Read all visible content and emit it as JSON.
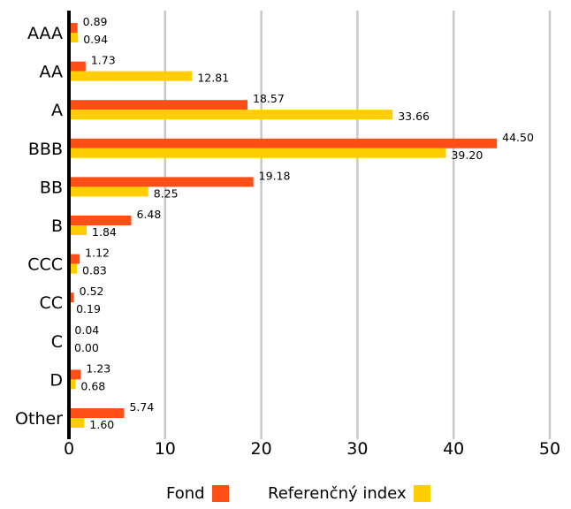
{
  "chart_data": {
    "type": "bar",
    "orientation": "horizontal",
    "categories": [
      "AAA",
      "AA",
      "A",
      "BBB",
      "BB",
      "B",
      "CCC",
      "CC",
      "C",
      "D",
      "Other"
    ],
    "series": [
      {
        "name": "Fond",
        "color": "#FF4F17",
        "values": [
          0.89,
          1.73,
          18.57,
          44.5,
          19.18,
          6.48,
          1.12,
          0.52,
          0.04,
          1.23,
          5.74
        ],
        "labels": [
          "0.89",
          "1.73",
          "18.57",
          "44.50",
          "19.18",
          "6.48",
          "1.12",
          "0.52",
          "0.04",
          "1.23",
          "5.74"
        ]
      },
      {
        "name": "Referenčný index",
        "color": "#FFCE00",
        "values": [
          0.94,
          12.81,
          33.66,
          39.2,
          8.25,
          1.84,
          0.83,
          0.19,
          0.0,
          0.68,
          1.6
        ],
        "labels": [
          "0.94",
          "12.81",
          "33.66",
          "39.20",
          "8.25",
          "1.84",
          "0.83",
          "0.19",
          "0.00",
          "0.68",
          "1.60"
        ]
      }
    ],
    "xlim": [
      0,
      50
    ],
    "xticks": [
      "0",
      "10",
      "20",
      "30",
      "40",
      "50"
    ],
    "xtick_values": [
      0,
      10,
      20,
      30,
      40,
      50
    ],
    "grid": "vertical",
    "legend_position": "bottom-center",
    "title": "",
    "xlabel": "",
    "ylabel": ""
  }
}
